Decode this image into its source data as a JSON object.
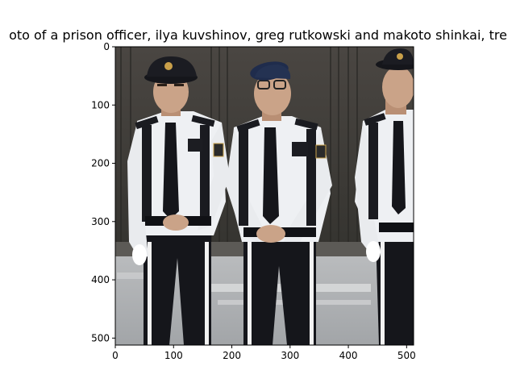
{
  "figure": {
    "title": "oto of a prison officer, ilya kuvshinov, greg rutkowski and makoto shinkai, tre"
  },
  "axes": {
    "x_ticks": [
      "0",
      "100",
      "200",
      "300",
      "400",
      "500"
    ],
    "y_ticks": [
      "0",
      "100",
      "200",
      "300",
      "400",
      "500"
    ],
    "x_tick_values": [
      0,
      100,
      200,
      300,
      400,
      500
    ],
    "y_tick_values": [
      0,
      100,
      200,
      300,
      400,
      500
    ],
    "xlim": [
      0,
      512
    ],
    "ylim": [
      512,
      0
    ]
  },
  "image_colors": {
    "background_wall": "#3c3b38",
    "ground": "#aeb0b3",
    "shirt": "#eef0f3",
    "uniform_dark": "#15161b",
    "skin": "#caa388",
    "badge": "#c9a04a",
    "beret": "#1f2c4c"
  }
}
